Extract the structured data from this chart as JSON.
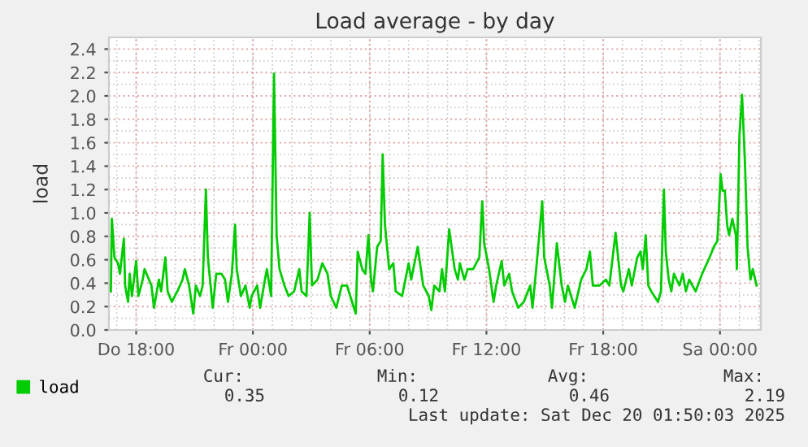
{
  "chart_data": {
    "type": "line",
    "title": "Load average - by day",
    "ylabel": "load",
    "x": [
      "2025-12-18T16:42",
      "2025-12-18T16:45",
      "2025-12-18T16:53",
      "2025-12-18T17:04",
      "2025-12-18T17:10",
      "2025-12-18T17:22",
      "2025-12-18T17:26",
      "2025-12-18T17:35",
      "2025-12-18T17:40",
      "2025-12-18T17:47",
      "2025-12-18T18:00",
      "2025-12-18T18:07",
      "2025-12-18T18:20",
      "2025-12-18T18:26",
      "2025-12-18T18:47",
      "2025-12-18T18:55",
      "2025-12-18T19:10",
      "2025-12-18T19:17",
      "2025-12-18T19:30",
      "2025-12-18T19:37",
      "2025-12-18T19:50",
      "2025-12-18T20:07",
      "2025-12-18T20:23",
      "2025-12-18T20:30",
      "2025-12-18T20:43",
      "2025-12-18T20:56",
      "2025-12-18T21:04",
      "2025-12-18T21:17",
      "2025-12-18T21:25",
      "2025-12-18T21:35",
      "2025-12-18T21:41",
      "2025-12-18T21:56",
      "2025-12-18T22:07",
      "2025-12-18T22:23",
      "2025-12-18T22:34",
      "2025-12-18T22:43",
      "2025-12-18T22:55",
      "2025-12-18T23:05",
      "2025-12-18T23:10",
      "2025-12-18T23:23",
      "2025-12-18T23:37",
      "2025-12-18T23:50",
      "2025-12-18T23:56",
      "2025-12-19T00:13",
      "2025-12-19T00:22",
      "2025-12-19T00:37",
      "2025-12-19T00:43",
      "2025-12-19T00:56",
      "2025-12-19T01:05",
      "2025-12-19T01:13",
      "2025-12-19T01:22",
      "2025-12-19T01:37",
      "2025-12-19T01:50",
      "2025-12-19T02:07",
      "2025-12-19T02:23",
      "2025-12-19T02:30",
      "2025-12-19T02:45",
      "2025-12-19T02:55",
      "2025-12-19T03:02",
      "2025-12-19T03:19",
      "2025-12-19T03:34",
      "2025-12-19T03:50",
      "2025-12-19T04:00",
      "2025-12-19T04:17",
      "2025-12-19T04:34",
      "2025-12-19T04:50",
      "2025-12-19T05:00",
      "2025-12-19T05:17",
      "2025-12-19T05:23",
      "2025-12-19T05:37",
      "2025-12-19T05:47",
      "2025-12-19T05:56",
      "2025-12-19T06:04",
      "2025-12-19T06:10",
      "2025-12-19T06:23",
      "2025-12-19T06:34",
      "2025-12-19T06:40",
      "2025-12-19T06:47",
      "2025-12-19T07:00",
      "2025-12-19T07:13",
      "2025-12-19T07:20",
      "2025-12-19T07:40",
      "2025-12-19T08:00",
      "2025-12-19T08:08",
      "2025-12-19T08:28",
      "2025-12-19T08:45",
      "2025-12-19T09:02",
      "2025-12-19T09:10",
      "2025-12-19T09:19",
      "2025-12-19T09:35",
      "2025-12-19T09:43",
      "2025-12-19T09:52",
      "2025-12-19T10:05",
      "2025-12-19T10:22",
      "2025-12-19T10:32",
      "2025-12-19T10:38",
      "2025-12-19T10:52",
      "2025-12-19T11:02",
      "2025-12-19T11:19",
      "2025-12-19T11:38",
      "2025-12-19T11:47",
      "2025-12-19T11:53",
      "2025-12-19T12:08",
      "2025-12-19T12:22",
      "2025-12-19T12:30",
      "2025-12-19T12:47",
      "2025-12-19T12:55",
      "2025-12-19T13:10",
      "2025-12-19T13:19",
      "2025-12-19T13:38",
      "2025-12-19T13:55",
      "2025-12-19T14:15",
      "2025-12-19T14:22",
      "2025-12-19T14:35",
      "2025-12-19T14:52",
      "2025-12-19T14:58",
      "2025-12-19T15:15",
      "2025-12-19T15:22",
      "2025-12-19T15:37",
      "2025-12-19T15:52",
      "2025-12-19T16:02",
      "2025-12-19T16:11",
      "2025-12-19T16:32",
      "2025-12-19T16:52",
      "2025-12-19T17:08",
      "2025-12-19T17:19",
      "2025-12-19T17:28",
      "2025-12-19T17:49",
      "2025-12-19T18:08",
      "2025-12-19T18:19",
      "2025-12-19T18:38",
      "2025-12-19T18:55",
      "2025-12-19T19:02",
      "2025-12-19T19:19",
      "2025-12-19T19:28",
      "2025-12-19T19:45",
      "2025-12-19T19:55",
      "2025-12-19T20:02",
      "2025-12-19T20:11",
      "2025-12-19T20:19",
      "2025-12-19T20:28",
      "2025-12-19T20:49",
      "2025-12-19T20:58",
      "2025-12-19T21:07",
      "2025-12-19T21:13",
      "2025-12-19T21:22",
      "2025-12-19T21:30",
      "2025-12-19T21:38",
      "2025-12-19T21:55",
      "2025-12-19T22:05",
      "2025-12-19T22:15",
      "2025-12-19T22:25",
      "2025-12-19T22:45",
      "2025-12-19T23:05",
      "2025-12-19T23:28",
      "2025-12-19T23:41",
      "2025-12-19T23:52",
      "2025-12-20T00:02",
      "2025-12-20T00:08",
      "2025-12-20T00:15",
      "2025-12-20T00:22",
      "2025-12-20T00:28",
      "2025-12-20T00:38",
      "2025-12-20T00:49",
      "2025-12-20T00:52",
      "2025-12-20T01:00",
      "2025-12-20T01:08",
      "2025-12-20T01:17",
      "2025-12-20T01:25",
      "2025-12-20T01:34",
      "2025-12-20T01:41",
      "2025-12-20T01:53"
    ],
    "series": [
      {
        "name": "load",
        "color": "#00cc00",
        "values": [
          0.33,
          0.95,
          0.62,
          0.57,
          0.48,
          0.78,
          0.38,
          0.24,
          0.48,
          0.29,
          0.59,
          0.29,
          0.43,
          0.52,
          0.38,
          0.19,
          0.43,
          0.33,
          0.62,
          0.33,
          0.24,
          0.33,
          0.43,
          0.52,
          0.38,
          0.14,
          0.38,
          0.29,
          0.38,
          1.2,
          0.62,
          0.19,
          0.48,
          0.48,
          0.43,
          0.24,
          0.48,
          0.9,
          0.52,
          0.29,
          0.38,
          0.19,
          0.29,
          0.38,
          0.19,
          0.43,
          0.52,
          0.29,
          2.19,
          0.81,
          0.52,
          0.38,
          0.29,
          0.33,
          0.52,
          0.33,
          0.29,
          1.0,
          0.38,
          0.43,
          0.57,
          0.48,
          0.29,
          0.19,
          0.38,
          0.38,
          0.29,
          0.14,
          0.67,
          0.52,
          0.48,
          0.81,
          0.43,
          0.33,
          0.71,
          0.76,
          1.5,
          0.9,
          0.52,
          0.57,
          0.33,
          0.29,
          0.57,
          0.43,
          0.71,
          0.38,
          0.29,
          0.17,
          0.38,
          0.33,
          0.52,
          0.33,
          0.86,
          0.52,
          0.43,
          0.57,
          0.43,
          0.52,
          0.52,
          0.62,
          1.1,
          0.74,
          0.52,
          0.24,
          0.38,
          0.59,
          0.38,
          0.48,
          0.33,
          0.19,
          0.24,
          0.38,
          0.19,
          0.57,
          1.1,
          0.62,
          0.38,
          0.19,
          0.74,
          0.38,
          0.24,
          0.38,
          0.19,
          0.43,
          0.52,
          0.67,
          0.38,
          0.38,
          0.43,
          0.38,
          0.83,
          0.38,
          0.33,
          0.52,
          0.38,
          0.62,
          0.67,
          0.52,
          0.81,
          0.38,
          0.33,
          0.24,
          0.33,
          1.2,
          0.67,
          0.43,
          0.33,
          0.48,
          0.38,
          0.48,
          0.33,
          0.43,
          0.33,
          0.48,
          0.62,
          0.71,
          0.76,
          1.33,
          1.19,
          1.19,
          0.9,
          0.81,
          0.95,
          0.81,
          0.52,
          1.66,
          2.01,
          1.43,
          0.71,
          0.43,
          0.52,
          0.38
        ]
      }
    ],
    "xlim": [
      "2025-12-18T16:36",
      "2025-12-20T02:06"
    ],
    "xticks": [
      {
        "value": "2025-12-18T18:00",
        "label": "Do 18:00"
      },
      {
        "value": "2025-12-19T00:00",
        "label": "Fr 00:00"
      },
      {
        "value": "2025-12-19T06:00",
        "label": "Fr 06:00"
      },
      {
        "value": "2025-12-19T12:00",
        "label": "Fr 12:00"
      },
      {
        "value": "2025-12-19T18:00",
        "label": "Fr 18:00"
      },
      {
        "value": "2025-12-20T00:00",
        "label": "Sa 00:00"
      }
    ],
    "ylim": [
      0,
      2.5
    ],
    "yticks": [
      {
        "value": 0,
        "label": "0.0"
      },
      {
        "value": 0.2,
        "label": "0.2"
      },
      {
        "value": 0.4,
        "label": "0.4"
      },
      {
        "value": 0.6,
        "label": "0.6"
      },
      {
        "value": 0.8,
        "label": "0.8"
      },
      {
        "value": 1.0,
        "label": "1.0"
      },
      {
        "value": 1.2,
        "label": "1.2"
      },
      {
        "value": 1.4,
        "label": "1.4"
      },
      {
        "value": 1.6,
        "label": "1.6"
      },
      {
        "value": 1.8,
        "label": "1.8"
      },
      {
        "value": 2.0,
        "label": "2.0"
      },
      {
        "value": 2.2,
        "label": "2.2"
      },
      {
        "value": 2.4,
        "label": "2.4"
      }
    ],
    "grid": true,
    "legend": "bottom",
    "line_style": "solid",
    "marker": "none",
    "annotations": [
      "Cur:",
      "Min:",
      "Avg:",
      "Max:",
      "0.35",
      "0.12",
      "0.46",
      "2.19",
      "Last update: Sat Dec 20 01:50:03 2025"
    ]
  }
}
